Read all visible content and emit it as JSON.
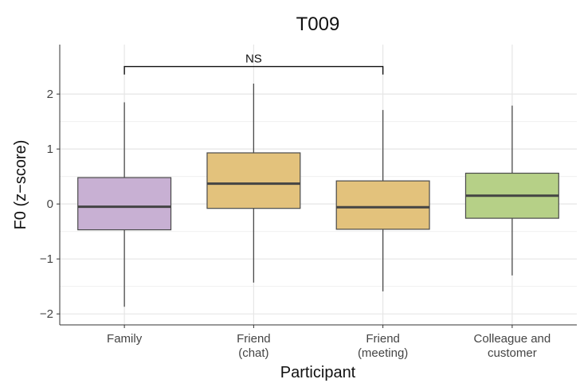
{
  "chart_data": {
    "type": "box",
    "title": "T009",
    "xlabel": "Participant",
    "ylabel": "F0 (z−score)",
    "ylim": [
      -2.2,
      2.9
    ],
    "yticks": [
      -2,
      -1,
      0,
      1,
      2
    ],
    "ytick_labels": [
      "−2",
      "−1",
      "0",
      "1",
      "2"
    ],
    "grid": true,
    "legend": "none",
    "categories": [
      [
        "Family"
      ],
      [
        "Friend",
        "(chat)"
      ],
      [
        "Friend",
        "(meeting)"
      ],
      [
        "Colleague and",
        "customer"
      ]
    ],
    "boxes": [
      {
        "min": -1.87,
        "q1": -0.47,
        "median": -0.05,
        "q3": 0.48,
        "max": 1.85,
        "color": "#C8B0D3"
      },
      {
        "min": -1.43,
        "q1": -0.08,
        "median": 0.37,
        "q3": 0.93,
        "max": 2.19,
        "color": "#E3C27C"
      },
      {
        "min": -1.59,
        "q1": -0.46,
        "median": -0.06,
        "q3": 0.42,
        "max": 1.71,
        "color": "#E3C27C"
      },
      {
        "min": -1.3,
        "q1": -0.26,
        "median": 0.15,
        "q3": 0.56,
        "max": 1.79,
        "color": "#B6D087"
      }
    ],
    "annotations": [
      {
        "from": 0,
        "to": 2,
        "label": "NS",
        "y": 2.5
      }
    ]
  }
}
